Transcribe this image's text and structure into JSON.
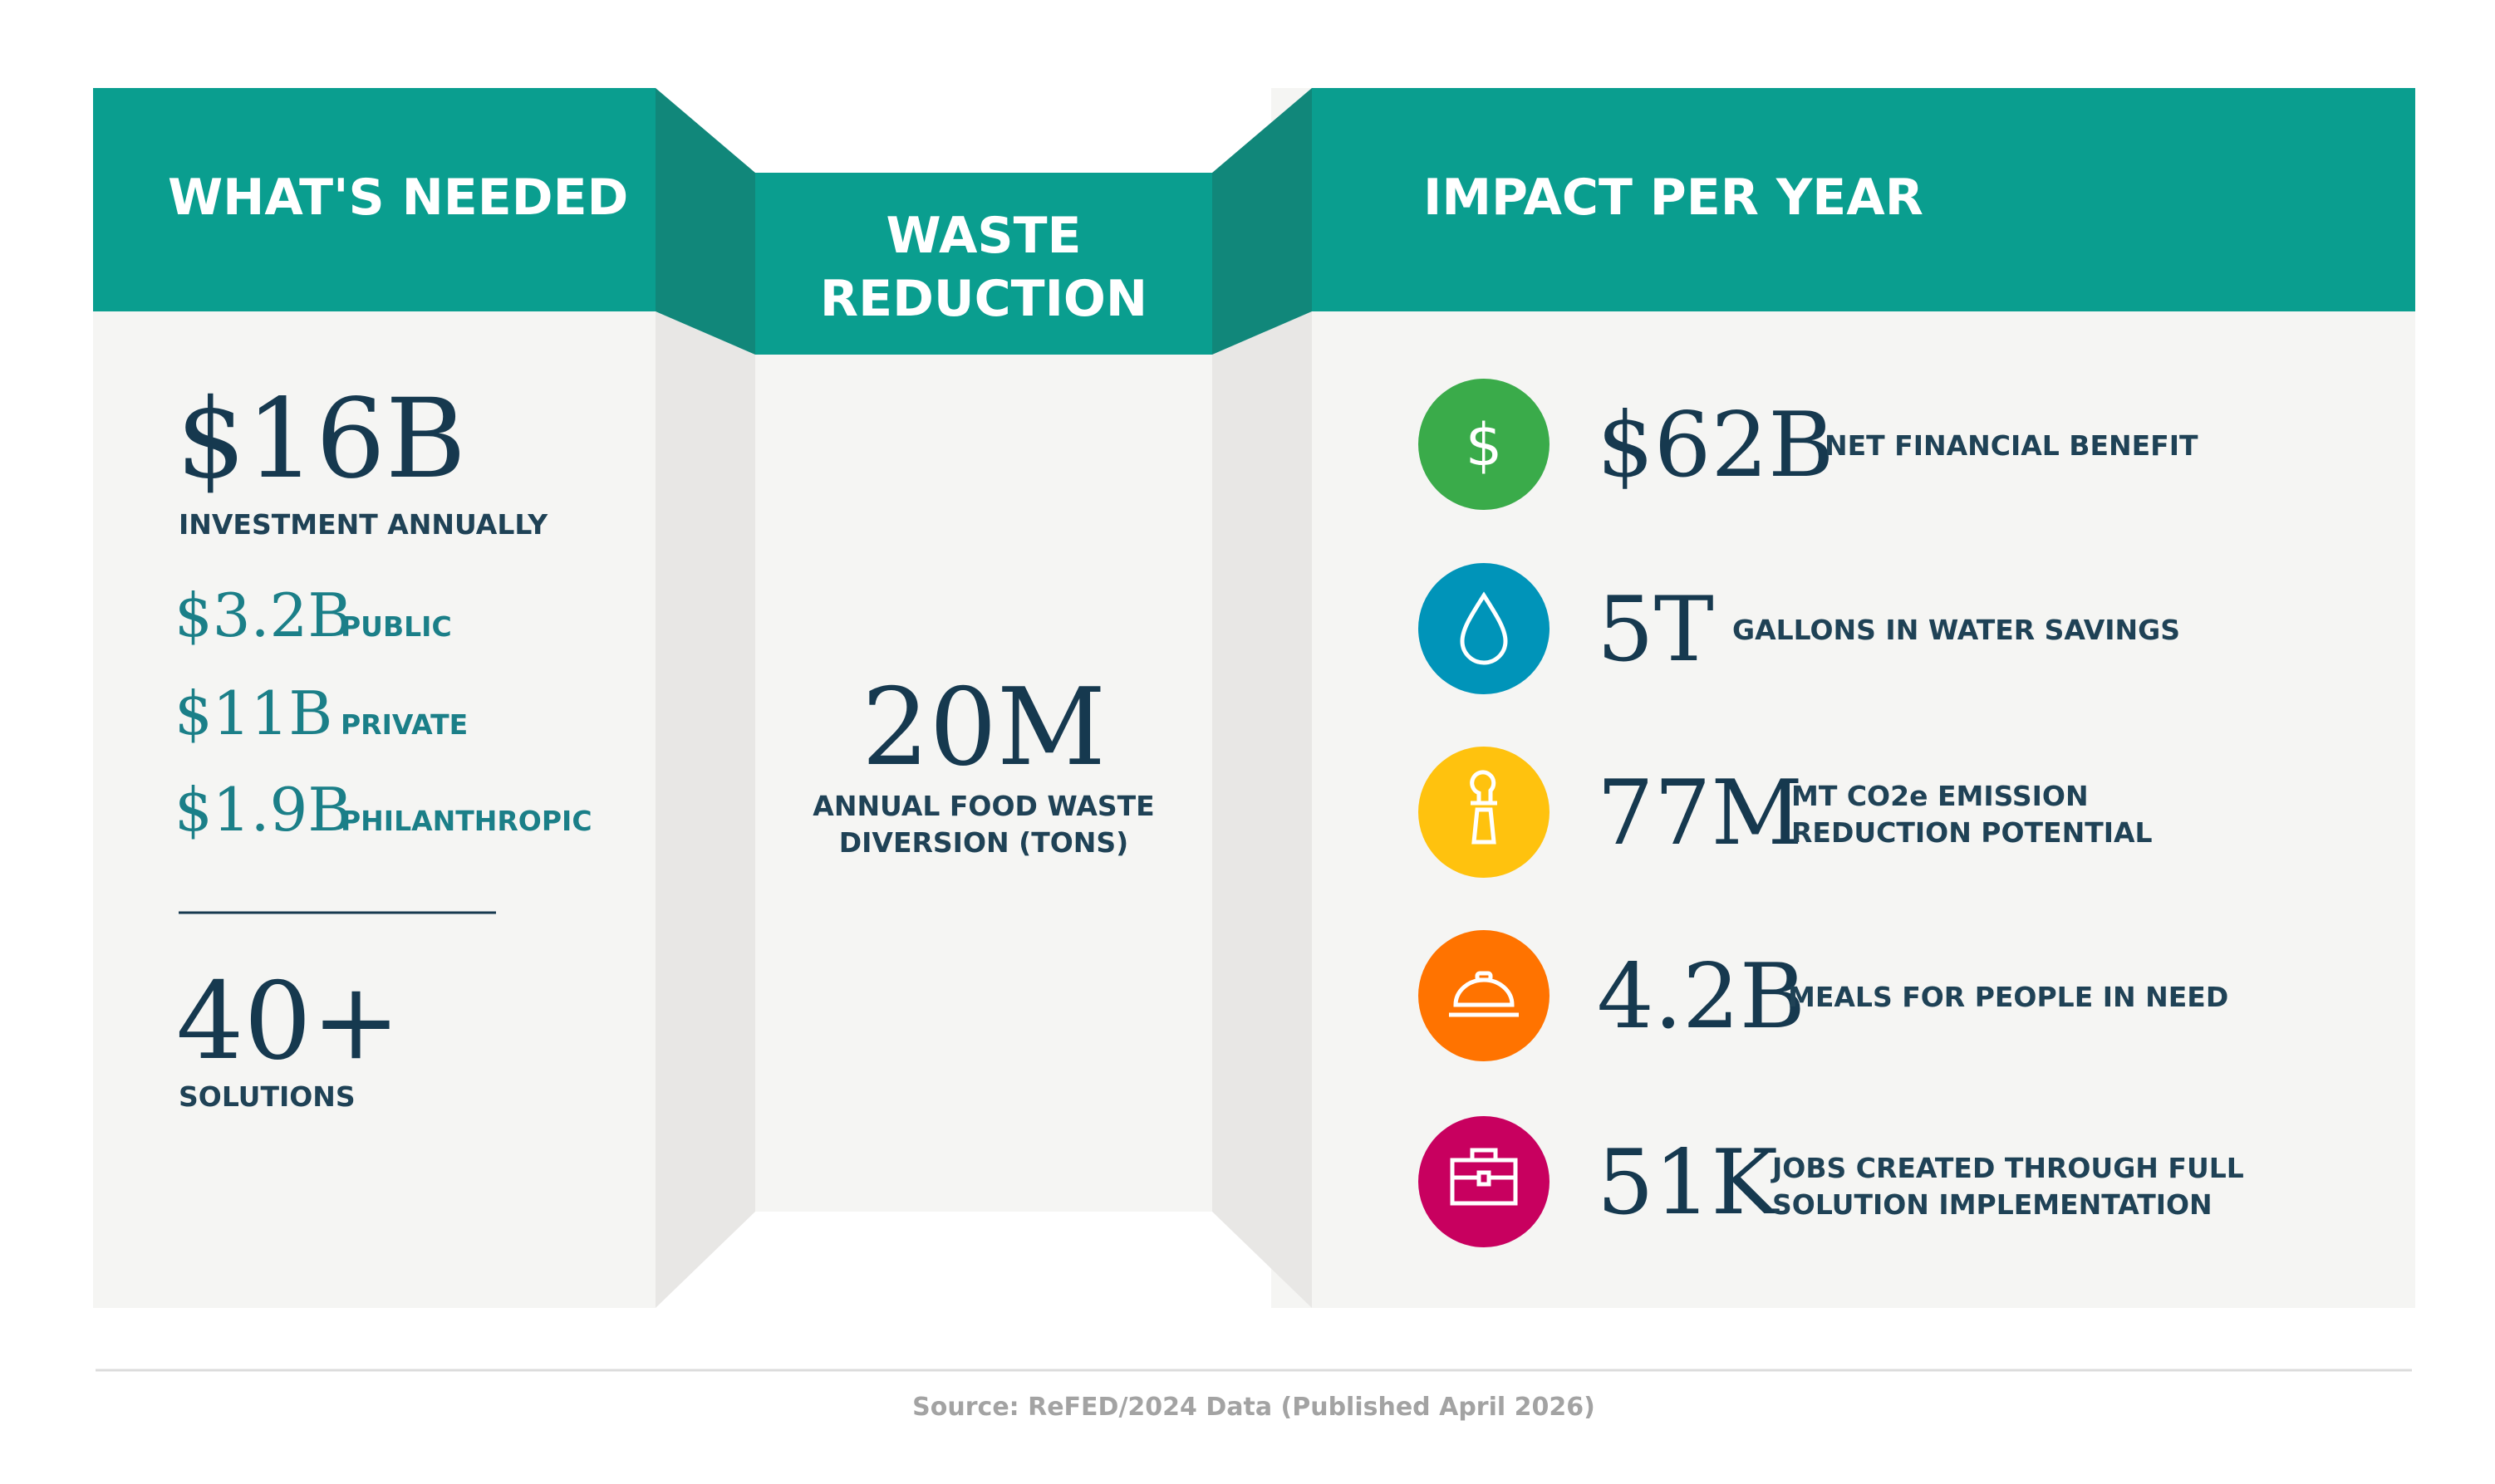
{
  "colors": {
    "header_teal": "#0a9e8f",
    "fold_teal": "#11877a",
    "panel": "#f5f5f3",
    "text_navy": "#16394f",
    "green": "#3aab4a",
    "blue": "#0094b9",
    "yellow": "#ffc20e",
    "orange": "#ff7300",
    "magenta": "#c8005f"
  },
  "left": {
    "title": "WHAT'S NEEDED",
    "investment_value": "$16B",
    "investment_label": "INVESTMENT ANNUALLY",
    "breakdown": [
      {
        "value": "$3.2B",
        "label": "PUBLIC"
      },
      {
        "value": "$11B",
        "label": "PRIVATE"
      },
      {
        "value": "$1.9B",
        "label": "PHILANTHROPIC"
      }
    ],
    "solutions_value": "40+",
    "solutions_label": "SOLUTIONS"
  },
  "middle": {
    "title_line1": "WASTE",
    "title_line2": "REDUCTION",
    "value": "20M",
    "label_line1": "ANNUAL FOOD WASTE",
    "label_line2": "DIVERSION (TONS)"
  },
  "right": {
    "title": "IMPACT PER YEAR",
    "items": [
      {
        "icon": "dollar-icon",
        "value": "$62B",
        "label_line1": "NET FINANCIAL BENEFIT",
        "label_line2": ""
      },
      {
        "icon": "water-drop-icon",
        "value": "5T",
        "label_line1": "GALLONS IN WATER SAVINGS",
        "label_line2": ""
      },
      {
        "icon": "smokestack-icon",
        "value": "77M",
        "label_line1": "MT CO2e EMISSION",
        "label_line2": "REDUCTION POTENTIAL"
      },
      {
        "icon": "food-cloche-icon",
        "value": "4.2B",
        "label_line1": "MEALS FOR PEOPLE IN NEED",
        "label_line2": ""
      },
      {
        "icon": "briefcase-icon",
        "value": "51K",
        "label_line1": "JOBS CREATED THROUGH FULL",
        "label_line2": "SOLUTION IMPLEMENTATION"
      }
    ]
  },
  "footer": {
    "source": "Source: ReFED/2024 Data (Published April 2026)"
  }
}
